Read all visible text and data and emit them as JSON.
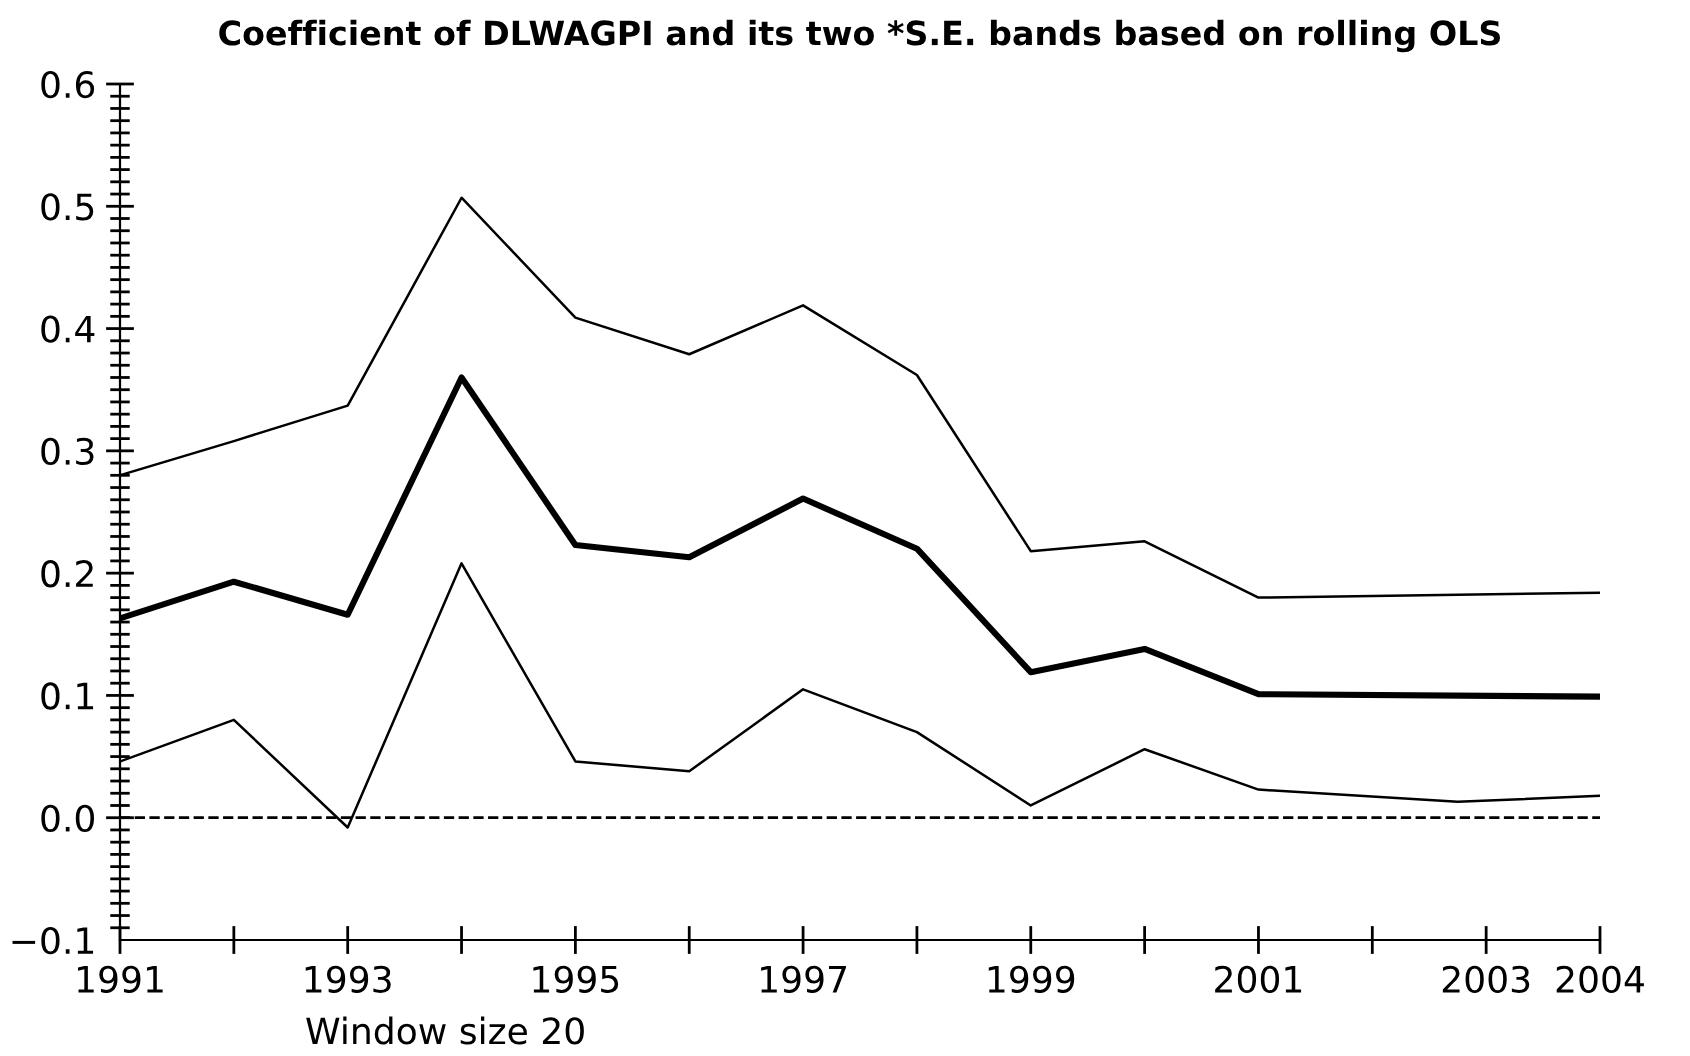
{
  "chart_data": {
    "type": "line",
    "title": "Coefficient of DLWAGPI and its two *S.E. bands based on rolling OLS",
    "xlabel": "Window size 20",
    "series": [
      {
        "color": "#000000",
        "x": [
          1991,
          1992,
          1993,
          1994,
          1995,
          1996,
          1997,
          1998,
          1999,
          2000,
          2001,
          2004
        ],
        "values": [
          0.28,
          0.308,
          0.337,
          0.507,
          0.409,
          0.379,
          0.419,
          0.362,
          0.218,
          0.226,
          0.18,
          0.184
        ]
      },
      {
        "color": "#000000",
        "x": [
          1991,
          1992,
          1993,
          1994,
          1995,
          1996,
          1997,
          1998,
          1999,
          2000,
          2001,
          2004
        ],
        "values": [
          0.163,
          0.193,
          0.166,
          0.36,
          0.223,
          0.213,
          0.261,
          0.22,
          0.119,
          0.138,
          0.101,
          0.099
        ]
      },
      {
        "color": "#000000",
        "x": [
          1991,
          1992,
          1993,
          1994,
          1995,
          1996,
          1997,
          1998,
          1999,
          2000,
          2001,
          2002.75,
          2004
        ],
        "values": [
          0.046,
          0.08,
          -0.008,
          0.208,
          0.046,
          0.038,
          0.105,
          0.07,
          0.01,
          0.056,
          0.023,
          0.013,
          0.018
        ]
      }
    ],
    "ref_lines": [
      {
        "axis": "y",
        "value": 0,
        "color": "#000000",
        "line_style": "dashed"
      }
    ],
    "xlim": [
      1991,
      2004
    ],
    "xticks": [
      1991,
      {
        "value": 1992,
        "label": null
      },
      1993,
      {
        "value": 1994,
        "label": null
      },
      1995,
      {
        "value": 1996,
        "label": null
      },
      1997,
      {
        "value": 1998,
        "label": null
      },
      1999,
      {
        "value": 2000,
        "label": null
      },
      2001,
      {
        "value": 2002,
        "label": null
      },
      2003,
      2004
    ],
    "ylim": [
      -0.1,
      0.6
    ],
    "yticks": [
      {
        "value": -0.1,
        "label": "−0.1"
      },
      {
        "value": -0.09,
        "label": null
      },
      {
        "value": -0.08,
        "label": null
      },
      {
        "value": -0.07,
        "label": null
      },
      {
        "value": -0.06,
        "label": null
      },
      {
        "value": -0.05,
        "label": null
      },
      {
        "value": -0.04,
        "label": null
      },
      {
        "value": -0.03,
        "label": null
      },
      {
        "value": -0.02,
        "label": null
      },
      {
        "value": -0.01,
        "label": null
      },
      {
        "value": 0.0,
        "label": "0.0"
      },
      {
        "value": 0.01,
        "label": null
      },
      {
        "value": 0.02,
        "label": null
      },
      {
        "value": 0.03,
        "label": null
      },
      {
        "value": 0.04,
        "label": null
      },
      {
        "value": 0.05,
        "label": null
      },
      {
        "value": 0.06,
        "label": null
      },
      {
        "value": 0.07,
        "label": null
      },
      {
        "value": 0.08,
        "label": null
      },
      {
        "value": 0.09,
        "label": null
      },
      {
        "value": 0.1,
        "label": "0.1"
      },
      {
        "value": 0.11,
        "label": null
      },
      {
        "value": 0.12,
        "label": null
      },
      {
        "value": 0.13,
        "label": null
      },
      {
        "value": 0.14,
        "label": null
      },
      {
        "value": 0.15,
        "label": null
      },
      {
        "value": 0.16,
        "label": null
      },
      {
        "value": 0.17,
        "label": null
      },
      {
        "value": 0.18,
        "label": null
      },
      {
        "value": 0.19,
        "label": null
      },
      {
        "value": 0.2,
        "label": "0.2"
      },
      {
        "value": 0.21,
        "label": null
      },
      {
        "value": 0.22,
        "label": null
      },
      {
        "value": 0.23,
        "label": null
      },
      {
        "value": 0.24,
        "label": null
      },
      {
        "value": 0.25,
        "label": null
      },
      {
        "value": 0.26,
        "label": null
      },
      {
        "value": 0.27,
        "label": null
      },
      {
        "value": 0.28,
        "label": null
      },
      {
        "value": 0.29,
        "label": null
      },
      {
        "value": 0.3,
        "label": "0.3"
      },
      {
        "value": 0.31,
        "label": null
      },
      {
        "value": 0.32,
        "label": null
      },
      {
        "value": 0.33,
        "label": null
      },
      {
        "value": 0.34,
        "label": null
      },
      {
        "value": 0.35,
        "label": null
      },
      {
        "value": 0.36,
        "label": null
      },
      {
        "value": 0.37,
        "label": null
      },
      {
        "value": 0.38,
        "label": null
      },
      {
        "value": 0.39,
        "label": null
      },
      {
        "value": 0.4,
        "label": "0.4"
      },
      {
        "value": 0.41,
        "label": null
      },
      {
        "value": 0.42,
        "label": null
      },
      {
        "value": 0.43,
        "label": null
      },
      {
        "value": 0.44,
        "label": null
      },
      {
        "value": 0.45,
        "label": null
      },
      {
        "value": 0.46,
        "label": null
      },
      {
        "value": 0.47,
        "label": null
      },
      {
        "value": 0.48,
        "label": null
      },
      {
        "value": 0.49,
        "label": null
      },
      {
        "value": 0.5,
        "label": "0.5"
      },
      {
        "value": 0.51,
        "label": null
      },
      {
        "value": 0.52,
        "label": null
      },
      {
        "value": 0.53,
        "label": null
      },
      {
        "value": 0.54,
        "label": null
      },
      {
        "value": 0.55,
        "label": null
      },
      {
        "value": 0.56,
        "label": null
      },
      {
        "value": 0.57,
        "label": null
      },
      {
        "value": 0.58,
        "label": null
      },
      {
        "value": 0.59,
        "label": null
      },
      {
        "value": 0.6,
        "label": "0.6"
      }
    ],
    "grid": false,
    "legend": false,
    "marker": "none",
    "line_style": "solid"
  }
}
